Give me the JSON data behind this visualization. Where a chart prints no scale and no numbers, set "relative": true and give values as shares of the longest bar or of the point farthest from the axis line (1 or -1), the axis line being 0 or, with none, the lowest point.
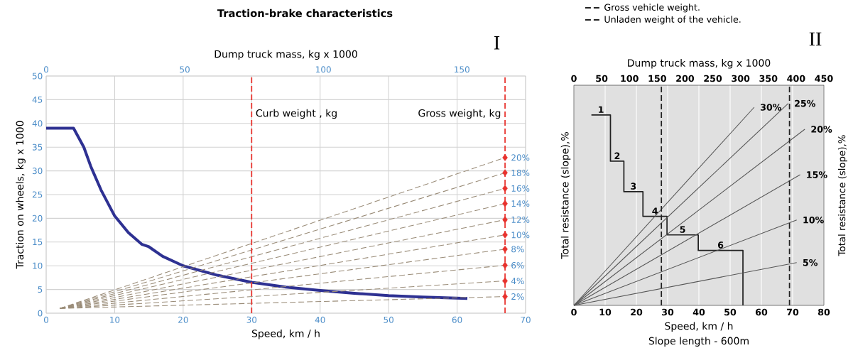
{
  "chart_data": [
    {
      "type": "line",
      "title": "Traction-brake characteristics",
      "xlabel": "Speed, km / h",
      "ylabel": "Traction on wheels, kg x 1000",
      "x2label": "Dump truck mass, kg x 1000",
      "xlim": [
        0,
        70
      ],
      "ylim": [
        0,
        50
      ],
      "xticks": [
        0,
        10,
        20,
        30,
        40,
        50,
        60,
        70
      ],
      "yticks": [
        0,
        5,
        10,
        15,
        20,
        25,
        30,
        35,
        40,
        45,
        50
      ],
      "x2lim": [
        0,
        173
      ],
      "x2ticks": [
        0,
        50,
        100,
        150
      ],
      "grid": true,
      "annotations": [
        "I"
      ],
      "ref_lines": [
        {
          "axis": "x",
          "value": 30,
          "label": "Curb weight , kg",
          "color": "#e8322d",
          "line_style": "dashed"
        },
        {
          "axis": "x",
          "value": 67,
          "label": "Gross weight, kg",
          "color": "#e8322d",
          "line_style": "dashed"
        }
      ],
      "series": [
        {
          "color": "#2e3192",
          "x": [
            0,
            4,
            5.5,
            6.5,
            8,
            10,
            12,
            14,
            15,
            17,
            20,
            25,
            30,
            35,
            40,
            45,
            50,
            55,
            61.5
          ],
          "values": [
            39,
            39,
            35,
            31,
            26,
            20.5,
            17,
            14.5,
            14,
            12,
            10,
            8,
            6.5,
            5.5,
            4.8,
            4.2,
            3.7,
            3.4,
            3.1
          ]
        },
        {
          "name": "20%",
          "color": "#9a8c78",
          "line_style": "dashed",
          "x": [
            2,
            67
          ],
          "values": [
            1,
            32.8
          ]
        },
        {
          "name": "18%",
          "color": "#9a8c78",
          "line_style": "dashed",
          "x": [
            2,
            67
          ],
          "values": [
            1,
            29.6
          ]
        },
        {
          "name": "16%",
          "color": "#9a8c78",
          "line_style": "dashed",
          "x": [
            2,
            67
          ],
          "values": [
            1,
            26.3
          ]
        },
        {
          "name": "14%",
          "color": "#9a8c78",
          "line_style": "dashed",
          "x": [
            2,
            67
          ],
          "values": [
            1,
            23.1
          ]
        },
        {
          "name": "12%",
          "color": "#9a8c78",
          "line_style": "dashed",
          "x": [
            2,
            67
          ],
          "values": [
            1,
            19.7
          ]
        },
        {
          "name": "10%",
          "color": "#9a8c78",
          "line_style": "dashed",
          "x": [
            2,
            67
          ],
          "values": [
            1,
            16.5
          ]
        },
        {
          "name": "8%",
          "color": "#9a8c78",
          "line_style": "dashed",
          "x": [
            2,
            67
          ],
          "values": [
            1,
            13.5
          ]
        },
        {
          "name": "6%",
          "color": "#9a8c78",
          "line_style": "dashed",
          "x": [
            2,
            67
          ],
          "values": [
            1,
            10.1
          ]
        },
        {
          "name": "4%",
          "color": "#9a8c78",
          "line_style": "dashed",
          "x": [
            2,
            67
          ],
          "values": [
            1,
            6.8
          ]
        },
        {
          "name": "2%",
          "color": "#9a8c78",
          "line_style": "dashed",
          "x": [
            2,
            67
          ],
          "values": [
            1,
            3.5
          ]
        },
        {
          "type": "scatter",
          "marker": "diamond",
          "color": "#e8322d",
          "x": [
            67,
            67,
            67,
            67,
            67,
            67,
            67,
            67,
            67,
            67
          ],
          "values": [
            32.8,
            29.6,
            26.3,
            23.1,
            19.7,
            16.5,
            13.5,
            10.1,
            6.8,
            3.5
          ]
        }
      ]
    },
    {
      "type": "line",
      "relative": true,
      "xlabel": "Speed, km / h",
      "ylabel": "Total resistance (slope),%",
      "y2label": "Total resistance (slope),%",
      "x2label": "Dump truck mass, kg x 1000",
      "xlim": [
        0,
        80
      ],
      "xticks": [
        0,
        10,
        20,
        30,
        40,
        50,
        60,
        70,
        80
      ],
      "x2lim": [
        0,
        450
      ],
      "x2ticks": [
        0,
        50,
        100,
        150,
        200,
        250,
        300,
        350,
        400,
        450
      ],
      "grid": "x",
      "legend": "top",
      "annotations": [
        "II",
        "Slope length - 600m",
        "1",
        "2",
        "3",
        "4",
        "5",
        "6"
      ],
      "ref_lines": [
        {
          "axis": "x",
          "value": 28,
          "label": "Gross vehicle weight.",
          "color": "#222222",
          "line_style": "dashed"
        },
        {
          "axis": "x",
          "value": 69,
          "label": "Unladen weight of the vehicle.",
          "color": "#222222",
          "line_style": "dashed"
        }
      ],
      "series": [
        {
          "type": "step",
          "color": "#222222",
          "x": [
            5.6,
            11.7,
            16.0,
            22.1,
            29.8,
            39.8,
            54.1
          ],
          "values": [
            0.943,
            0.714,
            0.563,
            0.441,
            0.349,
            0.272,
            0
          ]
        },
        {
          "name": "30%",
          "color": "#555555",
          "x": [
            0,
            57.7
          ],
          "values": [
            0,
            0.981
          ]
        },
        {
          "name": "25%",
          "color": "#555555",
          "x": [
            0,
            68.6
          ],
          "values": [
            0,
            1
          ]
        },
        {
          "name": "20%",
          "color": "#555555",
          "x": [
            0,
            73.9
          ],
          "values": [
            0,
            0.872
          ]
        },
        {
          "name": "15%",
          "color": "#555555",
          "x": [
            0,
            72.4
          ],
          "values": [
            0,
            0.647
          ]
        },
        {
          "name": "10%",
          "color": "#555555",
          "x": [
            0,
            71.3
          ],
          "values": [
            0,
            0.423
          ]
        },
        {
          "name": "5%",
          "color": "#555555",
          "x": [
            0,
            71.3
          ],
          "values": [
            0,
            0.212
          ]
        }
      ]
    }
  ]
}
